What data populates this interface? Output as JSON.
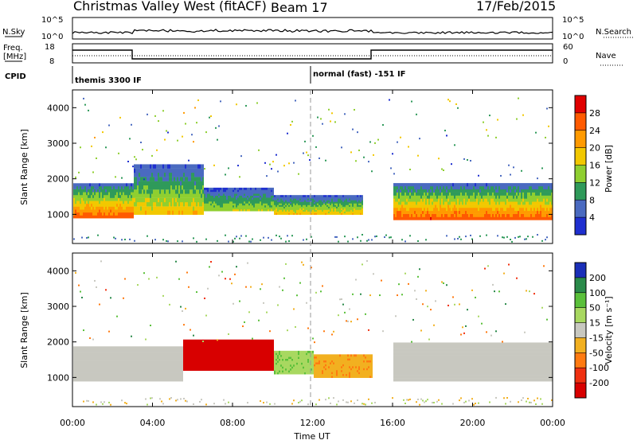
{
  "header": {
    "station": "Christmas Valley West (fitACF)",
    "beam": "Beam 17",
    "date": "17/Feb/2015"
  },
  "strip_labels": {
    "nsky": "N.Sky",
    "nsky_top": "10^5",
    "nsky_bottom": "10^0",
    "nsearch": "N.Search",
    "nsearch_top": "10^5",
    "nsearch_bottom": "10^0",
    "freq_line1": "Freq.",
    "freq_line2": "[MHz]",
    "freq_top": "18",
    "freq_bottom": "8",
    "nave": "Nave",
    "nave_top": "60",
    "nave_bottom": "0",
    "cpid": "CPID",
    "cpid_mode1": "themis 3300 IF",
    "cpid_mode2": "normal (fast) -151 IF"
  },
  "axes": {
    "ylabel": "Slant Range [km]",
    "xlabel": "Time UT",
    "xticks": [
      "00:00",
      "04:00",
      "08:00",
      "12:00",
      "16:00",
      "20:00",
      "00:00"
    ],
    "yticks": [
      "1000",
      "2000",
      "3000",
      "4000"
    ]
  },
  "colorbars": {
    "power": {
      "label": "Power [dB]",
      "ticks": [
        "28",
        "24",
        "20",
        "16",
        "12",
        "8",
        "4"
      ],
      "colors": [
        "#e00000",
        "#ff5a00",
        "#ff9a00",
        "#f2c800",
        "#8fcf30",
        "#2f9a5a",
        "#4a6ac0",
        "#1f2fd0"
      ]
    },
    "velocity": {
      "label": "Velocity [m s⁻¹]",
      "ticks": [
        "200",
        "100",
        "50",
        "15",
        "-15",
        "-50",
        "-100",
        "-200"
      ],
      "colors": [
        "#1a2fb8",
        "#2a8a4a",
        "#5ac03a",
        "#a8d860",
        "#c8c8c0",
        "#f2b020",
        "#ff7a10",
        "#f03010",
        "#d80000"
      ]
    }
  },
  "chart_data": [
    {
      "type": "heatmap",
      "title": "Power",
      "xlabel": "Time UT",
      "ylabel": "Slant Range [km]",
      "xlim": [
        "00:00",
        "24:00"
      ],
      "ylim": [
        180,
        4500
      ],
      "colorbar": "Power [dB]",
      "colorbar_range": [
        0,
        30
      ],
      "segments": [
        {
          "t": [
            0.0,
            3.0
          ],
          "core": [
            900,
            1800
          ],
          "peak_dB": 26
        },
        {
          "t": [
            3.0,
            6.5
          ],
          "core": [
            1000,
            2300
          ],
          "peak_dB": 18
        },
        {
          "t": [
            6.5,
            10.0
          ],
          "core": [
            1100,
            1700
          ],
          "peak_dB": 14
        },
        {
          "t": [
            10.0,
            14.5
          ],
          "core": [
            1000,
            1500
          ],
          "peak_dB": 18
        },
        {
          "t": [
            16.0,
            24.0
          ],
          "core": [
            850,
            1800
          ],
          "peak_dB": 26
        }
      ]
    },
    {
      "type": "heatmap",
      "title": "Velocity",
      "xlabel": "Time UT",
      "ylabel": "Slant Range [km]",
      "xlim": [
        "00:00",
        "24:00"
      ],
      "ylim": [
        180,
        4500
      ],
      "colorbar": "Velocity [m s⁻¹]",
      "colorbar_range": [
        -200,
        200
      ],
      "segments": [
        {
          "t": [
            0.0,
            5.5
          ],
          "core": [
            900,
            1800
          ],
          "velocity": 0
        },
        {
          "t": [
            5.5,
            10.0
          ],
          "core": [
            1200,
            2000
          ],
          "velocity": -200
        },
        {
          "t": [
            10.0,
            12.0
          ],
          "core": [
            1100,
            1700
          ],
          "velocity": 60
        },
        {
          "t": [
            12.0,
            15.0
          ],
          "core": [
            1000,
            1600
          ],
          "velocity": -60
        },
        {
          "t": [
            16.0,
            24.0
          ],
          "core": [
            900,
            1900
          ],
          "velocity": 0
        }
      ]
    }
  ]
}
